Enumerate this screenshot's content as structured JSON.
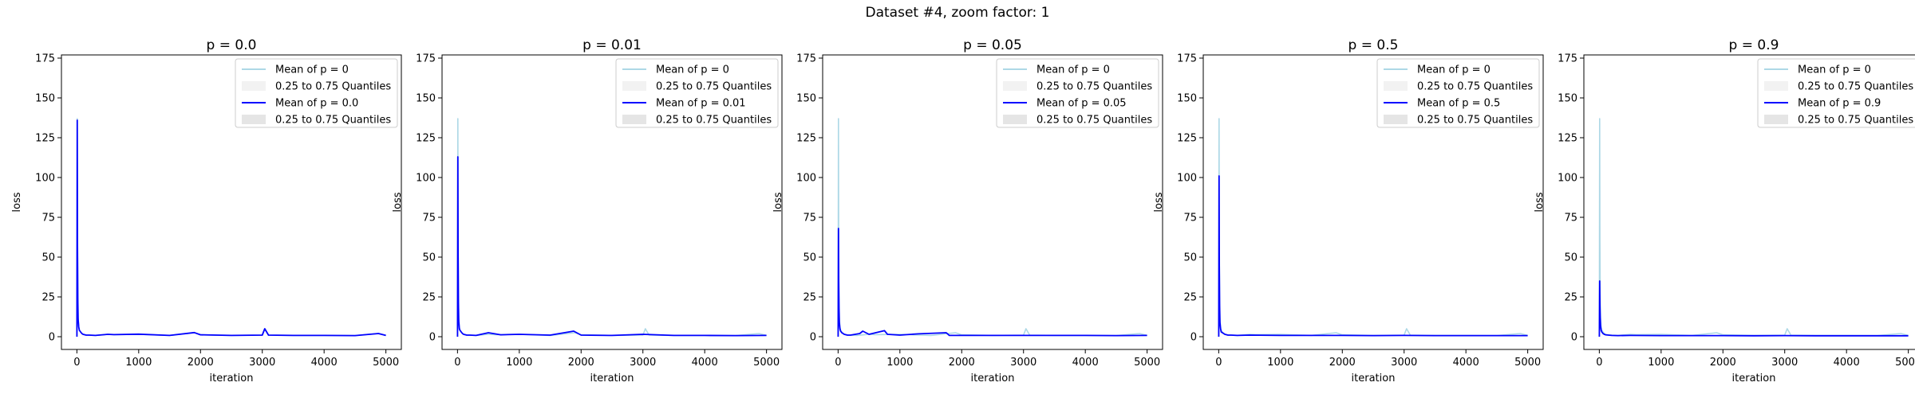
{
  "figure_title": "Dataset #4, zoom factor: 1",
  "colors": {
    "baseline": "#add8e6",
    "series": "#0000ff",
    "band": "#d3d3d3",
    "axes": "#000000"
  },
  "chart_data": [
    {
      "type": "line",
      "title": "p = 0.0",
      "xlabel": "iteration",
      "ylabel": "loss",
      "xlim": [
        -250,
        5250
      ],
      "ylim": [
        -8,
        177
      ],
      "xticks": [
        0,
        1000,
        2000,
        3000,
        4000,
        5000
      ],
      "yticks": [
        0,
        25,
        50,
        75,
        100,
        125,
        150,
        175
      ],
      "legend": {
        "placement": "upper right",
        "entries": [
          "Mean of p = 0",
          "0.25 to 0.75 Quantiles",
          "Mean of p = 0.0",
          "0.25 to 0.75 Quantiles"
        ]
      },
      "series": [
        {
          "name": "Mean of p = 0",
          "color": "#add8e6",
          "x": [
            0,
            5,
            10,
            15,
            20,
            30,
            40,
            60,
            80,
            100,
            150,
            200,
            300,
            500,
            600,
            1000,
            1500,
            1900,
            2000,
            2500,
            3000,
            3040,
            3100,
            3500,
            4000,
            4500,
            4880,
            5000
          ],
          "y": [
            0,
            137,
            60,
            25,
            12,
            6,
            4,
            3,
            2,
            1.5,
            1,
            1,
            0.8,
            1.5,
            1.3,
            1.5,
            0.8,
            2.5,
            1.2,
            0.8,
            1,
            5,
            1,
            0.8,
            0.8,
            0.7,
            2,
            0.8
          ]
        },
        {
          "name": "Mean of p = 0.0",
          "color": "#0000ff",
          "x": [
            0,
            5,
            10,
            15,
            20,
            30,
            40,
            60,
            80,
            100,
            150,
            200,
            300,
            500,
            600,
            1000,
            1500,
            1900,
            2000,
            2500,
            3000,
            3040,
            3100,
            3500,
            4000,
            4500,
            4880,
            5000
          ],
          "y": [
            0,
            136,
            58,
            24,
            11,
            6,
            4,
            3,
            2,
            1.5,
            1,
            1,
            0.8,
            1.5,
            1.3,
            1.6,
            0.8,
            2.6,
            1.2,
            0.8,
            1,
            5,
            1,
            0.8,
            0.8,
            0.7,
            2,
            0.8
          ]
        }
      ]
    },
    {
      "type": "line",
      "title": "p = 0.01",
      "xlabel": "iteration",
      "ylabel": "loss",
      "xlim": [
        -250,
        5250
      ],
      "ylim": [
        -8,
        177
      ],
      "xticks": [
        0,
        1000,
        2000,
        3000,
        4000,
        5000
      ],
      "yticks": [
        0,
        25,
        50,
        75,
        100,
        125,
        150,
        175
      ],
      "legend": {
        "placement": "upper right",
        "entries": [
          "Mean of p = 0",
          "0.25 to 0.75 Quantiles",
          "Mean of p = 0.01",
          "0.25 to 0.75 Quantiles"
        ]
      },
      "series": [
        {
          "name": "Mean of p = 0",
          "color": "#add8e6",
          "x": [
            0,
            5,
            10,
            15,
            20,
            30,
            40,
            60,
            80,
            100,
            150,
            200,
            300,
            500,
            600,
            1000,
            1500,
            1900,
            2000,
            2500,
            3000,
            3040,
            3100,
            3500,
            4000,
            4500,
            4880,
            5000
          ],
          "y": [
            0,
            137,
            60,
            25,
            12,
            6,
            4,
            3,
            2,
            1.5,
            1,
            1,
            0.8,
            1.5,
            1.3,
            1.5,
            0.8,
            2.5,
            1.2,
            0.8,
            1,
            5,
            1,
            0.8,
            0.8,
            0.7,
            2,
            0.8
          ]
        },
        {
          "name": "Mean of p = 0.01",
          "color": "#0000ff",
          "x": [
            0,
            5,
            10,
            15,
            20,
            30,
            40,
            60,
            80,
            100,
            150,
            200,
            300,
            500,
            700,
            1000,
            1500,
            1880,
            2000,
            2500,
            3000,
            3500,
            4000,
            4500,
            5000
          ],
          "y": [
            0,
            113,
            55,
            22,
            10,
            5,
            4,
            3,
            2,
            1.5,
            1,
            1,
            0.8,
            2.5,
            1.2,
            1.5,
            1,
            3.5,
            1,
            0.8,
            1.5,
            0.8,
            0.8,
            0.7,
            0.8
          ]
        }
      ]
    },
    {
      "type": "line",
      "title": "p = 0.05",
      "xlabel": "iteration",
      "ylabel": "loss",
      "xlim": [
        -250,
        5250
      ],
      "ylim": [
        -8,
        177
      ],
      "xticks": [
        0,
        1000,
        2000,
        3000,
        4000,
        5000
      ],
      "yticks": [
        0,
        25,
        50,
        75,
        100,
        125,
        150,
        175
      ],
      "legend": {
        "placement": "upper right",
        "entries": [
          "Mean of p = 0",
          "0.25 to 0.75 Quantiles",
          "Mean of p = 0.05",
          "0.25 to 0.75 Quantiles"
        ]
      },
      "series": [
        {
          "name": "Mean of p = 0",
          "color": "#add8e6",
          "x": [
            0,
            5,
            10,
            15,
            20,
            30,
            40,
            60,
            80,
            100,
            150,
            200,
            300,
            500,
            600,
            1000,
            1500,
            1900,
            2000,
            2500,
            3000,
            3040,
            3100,
            3500,
            4000,
            4500,
            4880,
            5000
          ],
          "y": [
            0,
            137,
            60,
            25,
            12,
            6,
            4,
            3,
            2,
            1.5,
            1,
            1,
            0.8,
            1.5,
            1.3,
            1.5,
            0.8,
            2.5,
            1.2,
            0.8,
            1,
            5,
            1,
            0.8,
            0.8,
            0.7,
            2,
            0.8
          ]
        },
        {
          "name": "Mean of p = 0.05",
          "color": "#0000ff",
          "x": [
            0,
            5,
            10,
            15,
            20,
            30,
            40,
            60,
            80,
            100,
            150,
            200,
            350,
            400,
            500,
            750,
            800,
            1000,
            1300,
            1750,
            1800,
            2000,
            2500,
            3000,
            3500,
            4000,
            4500,
            5000
          ],
          "y": [
            0,
            68,
            35,
            18,
            9,
            5,
            3.5,
            2.5,
            2,
            1.5,
            1,
            1,
            2,
            3.5,
            1.5,
            3.8,
            1.5,
            1,
            1.8,
            2.5,
            0.8,
            0.8,
            0.8,
            0.8,
            0.8,
            0.8,
            0.7,
            0.8
          ]
        }
      ]
    },
    {
      "type": "line",
      "title": "p = 0.5",
      "xlabel": "iteration",
      "ylabel": "loss",
      "xlim": [
        -250,
        5250
      ],
      "ylim": [
        -8,
        177
      ],
      "xticks": [
        0,
        1000,
        2000,
        3000,
        4000,
        5000
      ],
      "yticks": [
        0,
        25,
        50,
        75,
        100,
        125,
        150,
        175
      ],
      "legend": {
        "placement": "upper right",
        "entries": [
          "Mean of p = 0",
          "0.25 to 0.75 Quantiles",
          "Mean of p = 0.5",
          "0.25 to 0.75 Quantiles"
        ]
      },
      "series": [
        {
          "name": "Mean of p = 0",
          "color": "#add8e6",
          "x": [
            0,
            5,
            10,
            15,
            20,
            30,
            40,
            60,
            80,
            100,
            150,
            200,
            300,
            500,
            600,
            1000,
            1500,
            1900,
            2000,
            2500,
            3000,
            3040,
            3100,
            3500,
            4000,
            4500,
            4880,
            5000
          ],
          "y": [
            0,
            137,
            60,
            25,
            12,
            6,
            4,
            3,
            2,
            1.5,
            1,
            1,
            0.8,
            1.5,
            1.3,
            1.5,
            0.8,
            2.5,
            1.2,
            0.8,
            1,
            5,
            1,
            0.8,
            0.8,
            0.7,
            2,
            0.8
          ]
        },
        {
          "name": "Mean of p = 0.5",
          "color": "#0000ff",
          "x": [
            0,
            5,
            10,
            15,
            20,
            30,
            40,
            60,
            80,
            100,
            150,
            200,
            300,
            500,
            1000,
            1500,
            2000,
            2500,
            3000,
            3500,
            4000,
            4500,
            5000
          ],
          "y": [
            0,
            101,
            45,
            20,
            9,
            5,
            3,
            2.5,
            2,
            1.5,
            1,
            1,
            0.8,
            1,
            0.8,
            0.8,
            0.8,
            0.7,
            0.8,
            0.7,
            0.7,
            0.7,
            0.7
          ]
        }
      ]
    },
    {
      "type": "line",
      "title": "p = 0.9",
      "xlabel": "iteration",
      "ylabel": "loss",
      "xlim": [
        -250,
        5250
      ],
      "ylim": [
        -8,
        177
      ],
      "xticks": [
        0,
        1000,
        2000,
        3000,
        4000,
        5000
      ],
      "yticks": [
        0,
        25,
        50,
        75,
        100,
        125,
        150,
        175
      ],
      "legend": {
        "placement": "upper right",
        "entries": [
          "Mean of p = 0",
          "0.25 to 0.75 Quantiles",
          "Mean of p = 0.9",
          "0.25 to 0.75 Quantiles"
        ]
      },
      "series": [
        {
          "name": "Mean of p = 0",
          "color": "#add8e6",
          "x": [
            0,
            5,
            10,
            15,
            20,
            30,
            40,
            60,
            80,
            100,
            150,
            200,
            300,
            500,
            600,
            1000,
            1500,
            1900,
            2000,
            2500,
            3000,
            3040,
            3100,
            3500,
            4000,
            4500,
            4880,
            5000
          ],
          "y": [
            0,
            137,
            60,
            25,
            12,
            6,
            4,
            3,
            2,
            1.5,
            1,
            1,
            0.8,
            1.5,
            1.3,
            1.5,
            0.8,
            2.5,
            1.2,
            0.8,
            1,
            5,
            1,
            0.8,
            0.8,
            0.7,
            2,
            0.8
          ]
        },
        {
          "name": "Mean of p = 0.9",
          "color": "#0000ff",
          "x": [
            0,
            5,
            10,
            15,
            20,
            30,
            40,
            60,
            80,
            100,
            150,
            200,
            300,
            500,
            1000,
            1500,
            2000,
            2500,
            3000,
            3500,
            4000,
            4500,
            5000
          ],
          "y": [
            0,
            35,
            20,
            12,
            7,
            4,
            3,
            2,
            1.5,
            1.2,
            1,
            0.8,
            0.7,
            0.8,
            0.7,
            0.7,
            0.7,
            0.6,
            0.7,
            0.6,
            0.6,
            0.6,
            0.6
          ]
        }
      ]
    }
  ]
}
